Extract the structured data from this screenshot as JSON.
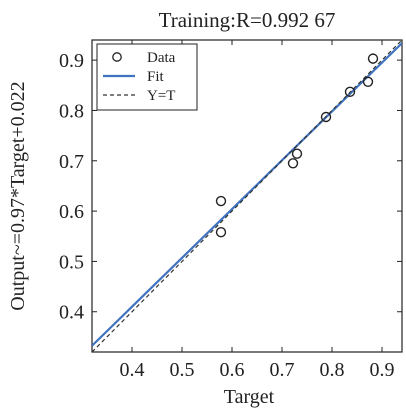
{
  "chart_data": {
    "type": "scatter",
    "title": "Training:R=0.992 67",
    "xlabel": "Target",
    "ylabel": "Output~=0.97*Target+0.022",
    "xlim": [
      0.32,
      0.94
    ],
    "ylim": [
      0.32,
      0.94
    ],
    "xticks": [
      "0.4",
      "0.5",
      "0.6",
      "0.7",
      "0.8",
      "0.9"
    ],
    "yticks": [
      "0.4",
      "0.5",
      "0.6",
      "0.7",
      "0.8",
      "0.9"
    ],
    "grid": false,
    "legend_position": "top-left",
    "series": [
      {
        "name": "Data",
        "kind": "markers",
        "color": "#222222",
        "x": [
          0.578,
          0.578,
          0.722,
          0.73,
          0.788,
          0.836,
          0.872,
          0.882
        ],
        "y": [
          0.62,
          0.558,
          0.695,
          0.714,
          0.787,
          0.837,
          0.857,
          0.903
        ]
      },
      {
        "name": "Fit",
        "kind": "line",
        "color": "#3f73c0",
        "slope": 0.97,
        "intercept": 0.022
      },
      {
        "name": "Y=T",
        "kind": "dashed-line",
        "color": "#333333",
        "slope": 1,
        "intercept": 0
      }
    ]
  }
}
